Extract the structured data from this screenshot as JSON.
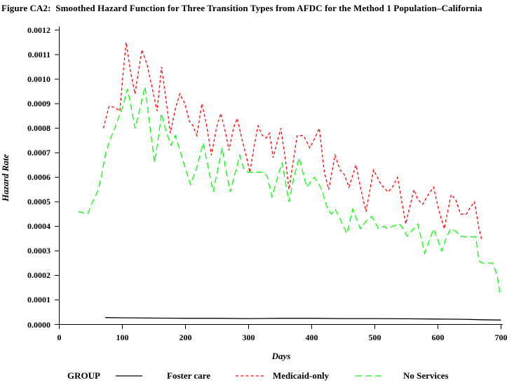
{
  "title": "Figure CA2:  Smoothed Hazard Function for Three Transition Types from AFDC for the Method 1 Population–California",
  "chart_data": {
    "type": "line",
    "title": "Figure CA2:  Smoothed Hazard Function for Three Transition Types from AFDC for the Method 1 Population–California",
    "xlabel": "Days",
    "ylabel": "Hazard Rate",
    "xlim": [
      0,
      700
    ],
    "ylim": [
      0,
      0.0012
    ],
    "grid": false,
    "legend_title": "GROUP",
    "legend_position": "bottom",
    "xtick_values": [
      0,
      100,
      200,
      300,
      400,
      500,
      600,
      700
    ],
    "xtick_labels": [
      "0",
      "100",
      "200",
      "300",
      "400",
      "500",
      "600",
      "700"
    ],
    "ytick_values": [
      0,
      0.0001,
      0.0002,
      0.0003,
      0.0004,
      0.0005,
      0.0006,
      0.0007,
      0.0008,
      0.0009,
      0.001,
      0.0011,
      0.0012
    ],
    "ytick_labels": [
      "0.0000",
      "0.0001",
      "0.0002",
      "0.0003",
      "0.0004",
      "0.0005",
      "0.0006",
      "0.0007",
      "0.0008",
      "0.0009",
      "0.0010",
      "0.0011",
      "0.0012"
    ],
    "series": [
      {
        "name": "Foster care",
        "id": "foster-care",
        "color": "#000000",
        "dash": "solid",
        "points": [
          [
            73,
            2.8e-05
          ],
          [
            100,
            2.7e-05
          ],
          [
            150,
            2.6e-05
          ],
          [
            200,
            2.5e-05
          ],
          [
            250,
            2.5e-05
          ],
          [
            300,
            2.4e-05
          ],
          [
            350,
            2.5e-05
          ],
          [
            400,
            2.5e-05
          ],
          [
            450,
            2.4e-05
          ],
          [
            500,
            2.4e-05
          ],
          [
            550,
            2.3e-05
          ],
          [
            600,
            2.2e-05
          ],
          [
            640,
            2.1e-05
          ],
          [
            670,
            1.9e-05
          ],
          [
            700,
            1.8e-05
          ]
        ]
      },
      {
        "name": "Medicaid-only",
        "id": "medicaid-only",
        "color": "#ff0000",
        "dash": "short-dash",
        "points": [
          [
            70,
            0.0008
          ],
          [
            76,
            0.00086
          ],
          [
            79,
            0.00089
          ],
          [
            88,
            0.000885
          ],
          [
            96,
            0.00087
          ],
          [
            101,
            0.00102
          ],
          [
            106,
            0.00115
          ],
          [
            113,
            0.00103
          ],
          [
            120,
            0.00094
          ],
          [
            126,
            0.00104
          ],
          [
            131,
            0.00112
          ],
          [
            139,
            0.00106
          ],
          [
            146,
            0.00098
          ],
          [
            155,
            0.00087
          ],
          [
            162,
            0.00105
          ],
          [
            169,
            0.00092
          ],
          [
            176,
            0.00078
          ],
          [
            184,
            0.00088
          ],
          [
            191,
            0.00094
          ],
          [
            199,
            0.0009
          ],
          [
            206,
            0.00083
          ],
          [
            212,
            0.00081
          ],
          [
            218,
            0.00077
          ],
          [
            226,
            0.0009
          ],
          [
            233,
            0.00082
          ],
          [
            241,
            0.00069
          ],
          [
            249,
            0.0008
          ],
          [
            256,
            0.00086
          ],
          [
            262,
            0.0008
          ],
          [
            269,
            0.00071
          ],
          [
            276,
            0.0008
          ],
          [
            282,
            0.00084
          ],
          [
            289,
            0.00076
          ],
          [
            295,
            0.0007
          ],
          [
            302,
            0.00062
          ],
          [
            309,
            0.00073
          ],
          [
            315,
            0.00081
          ],
          [
            322,
            0.00077
          ],
          [
            328,
            0.00076
          ],
          [
            333,
            0.00078
          ],
          [
            339,
            0.00068
          ],
          [
            345,
            0.00074
          ],
          [
            351,
            0.0008
          ],
          [
            358,
            0.00068
          ],
          [
            364,
            0.00055
          ],
          [
            371,
            0.00067
          ],
          [
            377,
            0.00077
          ],
          [
            387,
            0.00077
          ],
          [
            397,
            0.00072
          ],
          [
            405,
            0.00076
          ],
          [
            412,
            0.0008
          ],
          [
            420,
            0.00062
          ],
          [
            427,
            0.00055
          ],
          [
            437,
            0.00069
          ],
          [
            445,
            0.00063
          ],
          [
            452,
            0.00061
          ],
          [
            459,
            0.00056
          ],
          [
            470,
            0.00065
          ],
          [
            478,
            0.00055
          ],
          [
            486,
            0.00046
          ],
          [
            498,
            0.00063
          ],
          [
            510,
            0.00057
          ],
          [
            521,
            0.00054
          ],
          [
            528,
            0.00056
          ],
          [
            536,
            0.0006
          ],
          [
            549,
            0.00041
          ],
          [
            562,
            0.00055
          ],
          [
            568,
            0.00051
          ],
          [
            576,
            0.00049
          ],
          [
            585,
            0.00053
          ],
          [
            593,
            0.00056
          ],
          [
            601,
            0.00047
          ],
          [
            610,
            0.00039
          ],
          [
            621,
            0.00053
          ],
          [
            628,
            0.00051
          ],
          [
            636,
            0.00045
          ],
          [
            645,
            0.00045
          ],
          [
            652,
            0.00048
          ],
          [
            658,
            0.0005
          ],
          [
            665,
            0.00039
          ],
          [
            670,
            0.00034
          ]
        ]
      },
      {
        "name": "No Services",
        "id": "no-services",
        "color": "#00ff00",
        "dash": "long-dash",
        "points": [
          [
            30,
            0.00046
          ],
          [
            38,
            0.000455
          ],
          [
            45,
            0.00045
          ],
          [
            53,
            0.0005
          ],
          [
            62,
            0.00055
          ],
          [
            68,
            0.00062
          ],
          [
            73,
            0.00069
          ],
          [
            80,
            0.00075
          ],
          [
            88,
            0.0008
          ],
          [
            95,
            0.00085
          ],
          [
            101,
            0.00089
          ],
          [
            108,
            0.00096
          ],
          [
            113,
            0.0009
          ],
          [
            120,
            0.0008
          ],
          [
            128,
            0.00088
          ],
          [
            136,
            0.00097
          ],
          [
            143,
            0.00082
          ],
          [
            151,
            0.00066
          ],
          [
            157,
            0.00076
          ],
          [
            162,
            0.00086
          ],
          [
            169,
            0.00079
          ],
          [
            177,
            0.00073
          ],
          [
            184,
            0.00077
          ],
          [
            190,
            0.00072
          ],
          [
            197,
            0.00066
          ],
          [
            208,
            0.00057
          ],
          [
            217,
            0.00063
          ],
          [
            228,
            0.00074
          ],
          [
            236,
            0.00064
          ],
          [
            244,
            0.00054
          ],
          [
            251,
            0.00063
          ],
          [
            258,
            0.00072
          ],
          [
            264,
            0.00063
          ],
          [
            271,
            0.00054
          ],
          [
            279,
            0.00062
          ],
          [
            286,
            0.00069
          ],
          [
            293,
            0.00063
          ],
          [
            300,
            0.00062
          ],
          [
            325,
            0.00062
          ],
          [
            330,
            0.0006
          ],
          [
            337,
            0.00052
          ],
          [
            345,
            0.00059
          ],
          [
            353,
            0.00066
          ],
          [
            364,
            0.0005
          ],
          [
            371,
            0.00059
          ],
          [
            380,
            0.00068
          ],
          [
            386,
            0.00062
          ],
          [
            392,
            0.00056
          ],
          [
            398,
            0.00058
          ],
          [
            404,
            0.0006
          ],
          [
            412,
            0.00057
          ],
          [
            417,
            0.00054
          ],
          [
            424,
            0.00048
          ],
          [
            431,
            0.00045
          ],
          [
            437,
            0.00047
          ],
          [
            445,
            0.00043
          ],
          [
            456,
            0.00037
          ],
          [
            465,
            0.00047
          ],
          [
            471,
            0.00043
          ],
          [
            477,
            0.00039
          ],
          [
            486,
            0.00042
          ],
          [
            495,
            0.00044
          ],
          [
            506,
            0.00039
          ],
          [
            515,
            0.0004
          ],
          [
            520,
            0.00039
          ],
          [
            528,
            0.0004
          ],
          [
            539,
            0.00041
          ],
          [
            545,
            0.00039
          ],
          [
            551,
            0.00036
          ],
          [
            558,
            0.00038
          ],
          [
            562,
            0.00039
          ],
          [
            568,
            0.00041
          ],
          [
            579,
            0.00029
          ],
          [
            586,
            0.00034
          ],
          [
            593,
            0.00039
          ],
          [
            599,
            0.00035
          ],
          [
            606,
            0.0003
          ],
          [
            613,
            0.00035
          ],
          [
            620,
            0.00039
          ],
          [
            628,
            0.00038
          ],
          [
            636,
            0.00036
          ],
          [
            643,
            0.000357
          ],
          [
            660,
            0.000357
          ],
          [
            665,
            0.00026
          ],
          [
            670,
            0.00025
          ],
          [
            687,
            0.00025
          ],
          [
            691,
            0.00022
          ],
          [
            694,
            0.0002
          ],
          [
            698,
            0.00013
          ]
        ]
      }
    ]
  }
}
